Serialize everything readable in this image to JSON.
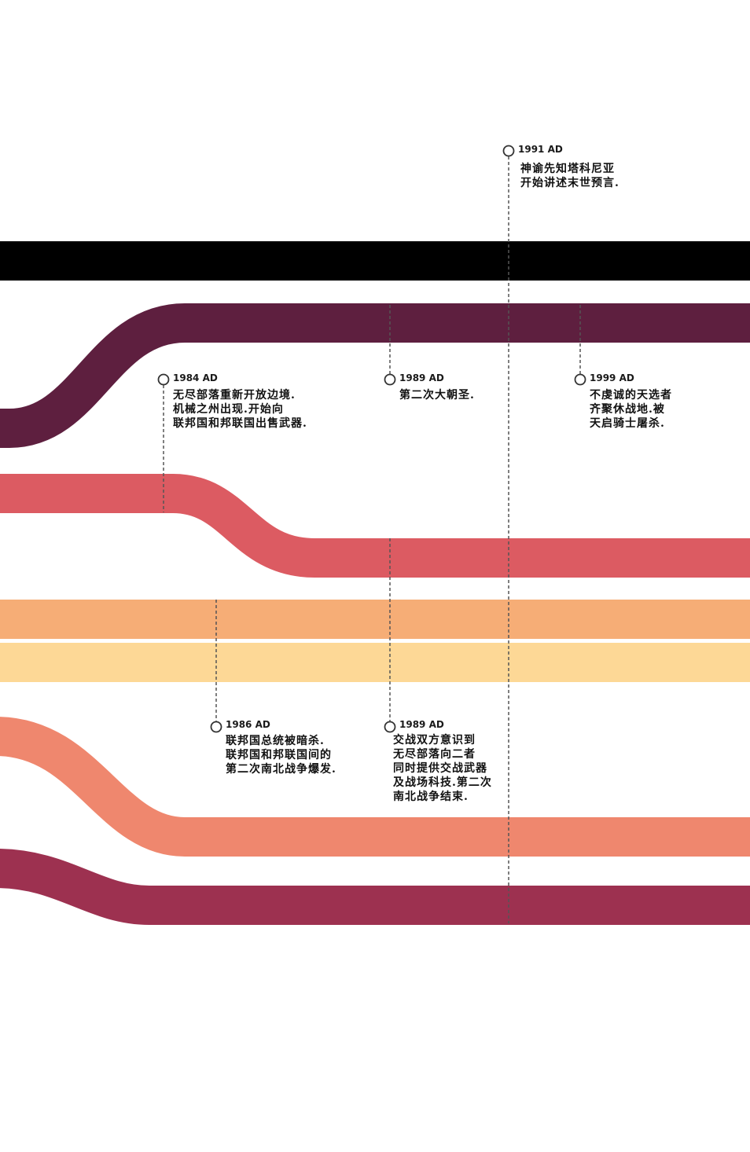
{
  "bands": [
    {
      "name": "black",
      "color": "#000000"
    },
    {
      "name": "plum",
      "color": "#5e1f3f"
    },
    {
      "name": "coral-red",
      "color": "#dc5b62"
    },
    {
      "name": "orange",
      "color": "#f6ad76"
    },
    {
      "name": "pale-yellow",
      "color": "#fdd896"
    },
    {
      "name": "salmon",
      "color": "#ef876e"
    },
    {
      "name": "raspberry",
      "color": "#9d3150"
    }
  ],
  "events": [
    {
      "year": "1991 AD",
      "text": "神谕先知塔科尼亚\n开始讲述末世预言."
    },
    {
      "year": "1984 AD",
      "text": "无尽部落重新开放边境.\n机械之州出现.开始向\n联邦国和邦联国出售武器."
    },
    {
      "year": "1989 AD",
      "text": "第二次大朝圣."
    },
    {
      "year": "1999 AD",
      "text": "不虔诚的天选者\n齐聚休战地.被\n天启骑士屠杀."
    },
    {
      "year": "1986 AD",
      "text": "联邦国总统被暗杀.\n联邦国和邦联国间的\n第二次南北战争爆发."
    },
    {
      "year": "1989 AD",
      "text": "交战双方意识到\n无尽部落向二者\n同时提供交战武器\n及战场科技.第二次\n南北战争结束."
    }
  ]
}
